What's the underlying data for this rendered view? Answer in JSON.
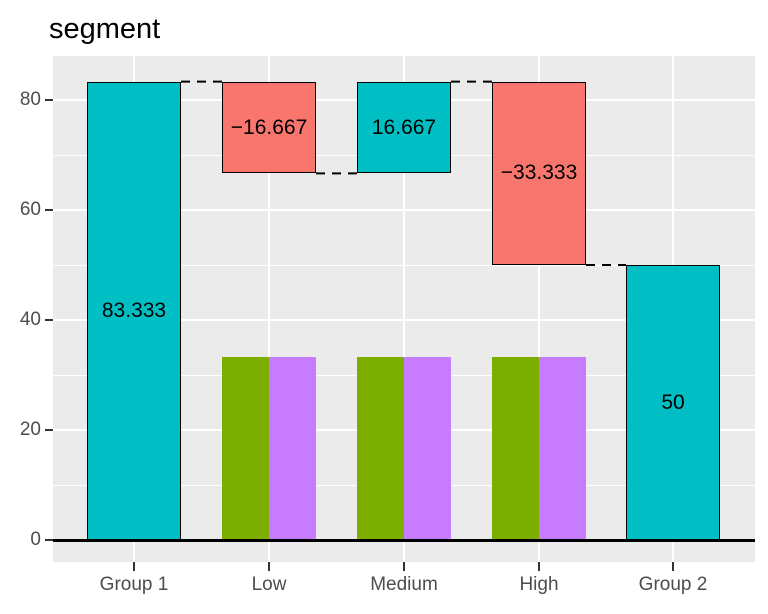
{
  "style": {
    "panel_bg": "#EBEBEB",
    "grid_color": "#FFFFFF",
    "axis_text_color": "#4D4D4D",
    "tick_color": "#333333",
    "title_color": "#000000",
    "bar_outline_color": "#000000",
    "value_label_color": "#000000",
    "baseline_color": "#000000",
    "connector_color": "#000000"
  },
  "chart_data": {
    "type": "bar",
    "subtype": "waterfall",
    "title": "segment",
    "xlabel": "",
    "ylabel": "",
    "categories": [
      "Group 1",
      "Low",
      "Medium",
      "High",
      "Group 2"
    ],
    "y_major_ticks": [
      0,
      20,
      40,
      60,
      80
    ],
    "y_tick_labels": [
      "0",
      "20",
      "40",
      "60",
      "80"
    ],
    "y_minor_gridlines": [
      10,
      30,
      50,
      70
    ],
    "ylim": [
      -4,
      88
    ],
    "grid": true,
    "legend_position": "none",
    "waterfall_segments": [
      {
        "category": "Group 1",
        "start": 0,
        "end": 83.333,
        "value": 83.333,
        "value_label": "83.333",
        "fill": "#00BFC4"
      },
      {
        "category": "Low",
        "start": 83.333,
        "end": 66.667,
        "value": -16.667,
        "value_label": "−16.667",
        "fill": "#F8766D"
      },
      {
        "category": "Medium",
        "start": 66.667,
        "end": 83.333,
        "value": 16.667,
        "value_label": "16.667",
        "fill": "#00BFC4"
      },
      {
        "category": "High",
        "start": 83.333,
        "end": 50,
        "value": -33.333,
        "value_label": "−33.333",
        "fill": "#F8766D"
      },
      {
        "category": "Group 2",
        "start": 0,
        "end": 50,
        "value": 50,
        "value_label": "50",
        "fill": "#00BFC4"
      }
    ],
    "sub_bars": [
      {
        "category": "Low",
        "start": 0,
        "end": 33.333,
        "left_fill": "#7CAE00",
        "right_fill": "#C77CFF"
      },
      {
        "category": "Medium",
        "start": 0,
        "end": 33.333,
        "left_fill": "#7CAE00",
        "right_fill": "#C77CFF"
      },
      {
        "category": "High",
        "start": 0,
        "end": 33.333,
        "left_fill": "#7CAE00",
        "right_fill": "#C77CFF"
      }
    ],
    "connectors": [
      {
        "from": "Group 1",
        "to": "Low",
        "level": 83.333
      },
      {
        "from": "Low",
        "to": "Medium",
        "level": 66.667
      },
      {
        "from": "Medium",
        "to": "High",
        "level": 83.333
      },
      {
        "from": "High",
        "to": "Group 2",
        "level": 50
      }
    ],
    "baseline_level": 0
  }
}
